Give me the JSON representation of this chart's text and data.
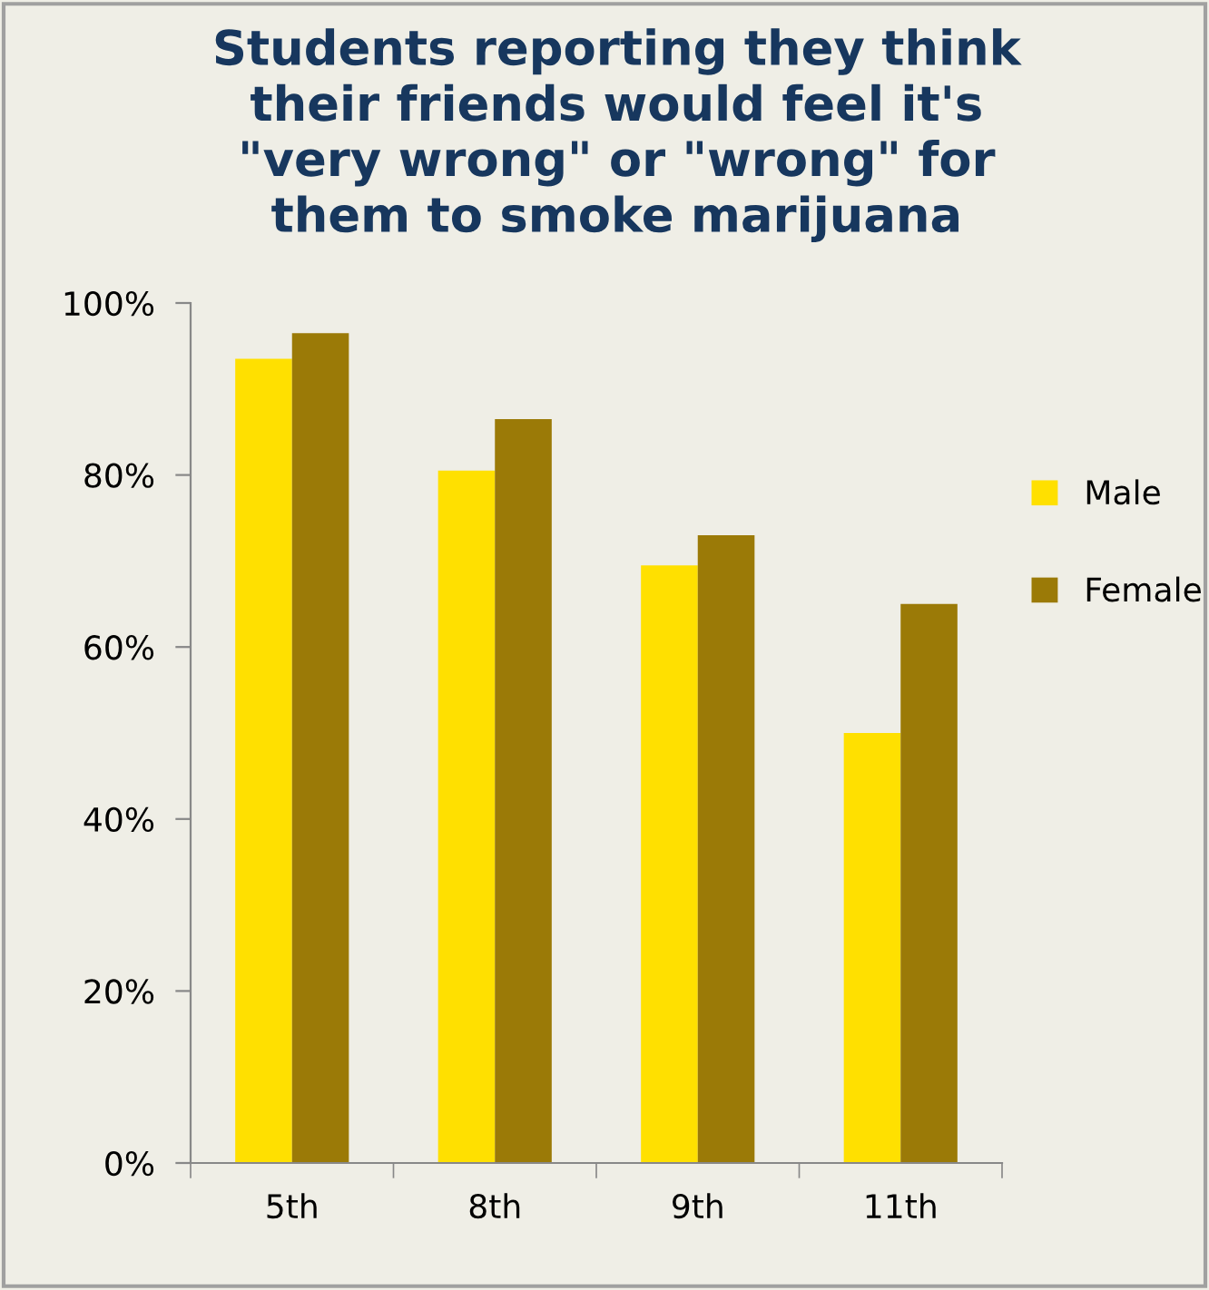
{
  "chart_data": {
    "type": "bar",
    "title": "Students reporting they think\ntheir friends would feel it's\n\"very wrong\" or \"wrong\" for\nthem to smoke marijuana",
    "categories": [
      "5th",
      "8th",
      "9th",
      "11th"
    ],
    "series": [
      {
        "name": "Male",
        "color": "#ffe000",
        "values": [
          93.5,
          80.5,
          69.5,
          50
        ]
      },
      {
        "name": "Female",
        "color": "#9b7a07",
        "values": [
          96.5,
          86.5,
          73,
          65
        ]
      }
    ],
    "ylim": [
      0,
      100
    ],
    "yticks": [
      {
        "value": 0,
        "label": "0%"
      },
      {
        "value": 20,
        "label": "20%"
      },
      {
        "value": 40,
        "label": "40%"
      },
      {
        "value": 60,
        "label": "60%"
      },
      {
        "value": 80,
        "label": "80%"
      },
      {
        "value": 100,
        "label": "100%"
      }
    ],
    "legend": "right",
    "grid": false
  }
}
